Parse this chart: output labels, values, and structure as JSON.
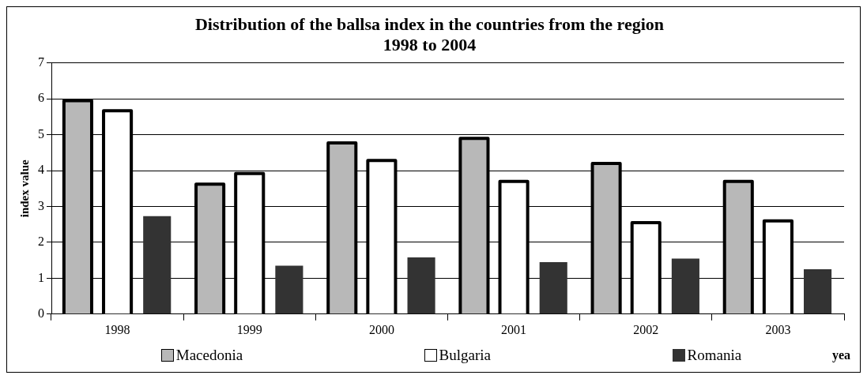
{
  "chart_data": {
    "type": "bar",
    "title": "Distribution of the ballsa index in the countries from the region\n1998 to 2004",
    "xlabel": "yea",
    "ylabel": "index value",
    "categories": [
      "1998",
      "1999",
      "2000",
      "2001",
      "2002",
      "2003"
    ],
    "series": [
      {
        "name": "Macedonia",
        "color": "#b8b8b8",
        "values": [
          5.95,
          3.62,
          4.77,
          4.9,
          4.2,
          3.7
        ]
      },
      {
        "name": "Bulgaria",
        "color": "#ffffff",
        "values": [
          5.67,
          3.92,
          4.28,
          3.7,
          2.55,
          2.6
        ]
      },
      {
        "name": "Romania",
        "color": "#333333",
        "values": [
          2.73,
          1.35,
          1.58,
          1.45,
          1.55,
          1.25
        ]
      }
    ],
    "ylim": [
      0,
      7
    ],
    "yticks": [
      0,
      1,
      2,
      3,
      4,
      5,
      6,
      7
    ],
    "grid": "y",
    "legend": "bottom"
  }
}
